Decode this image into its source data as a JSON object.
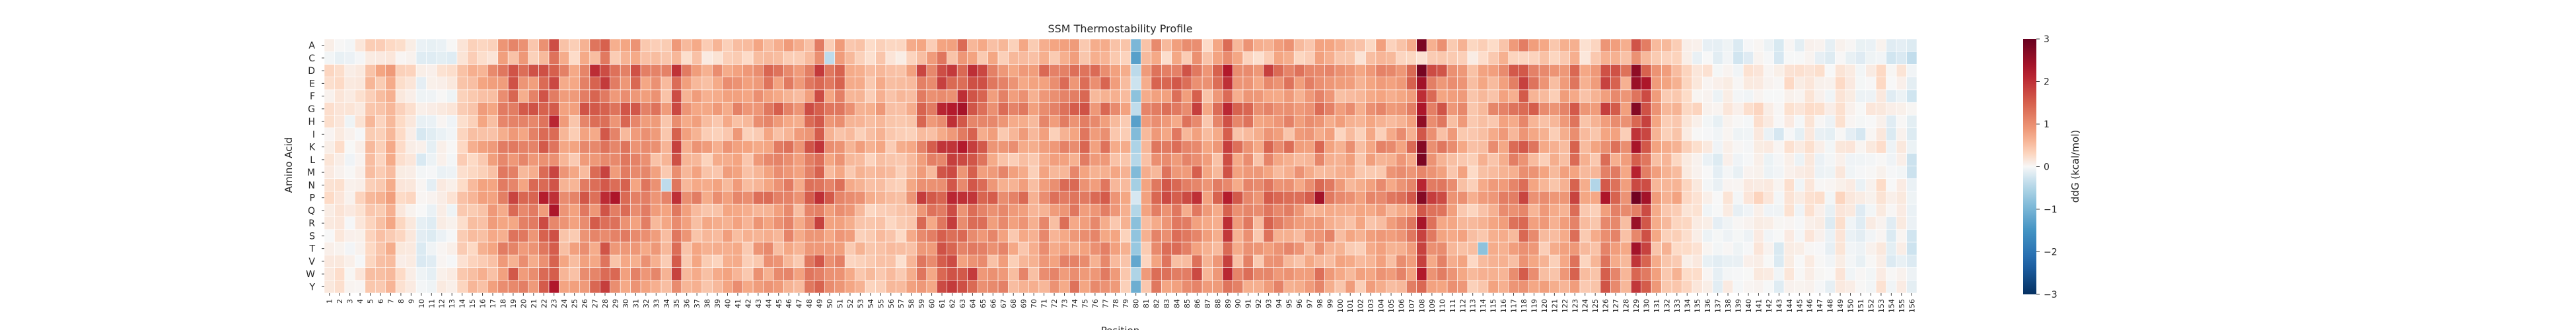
{
  "chart_data": {
    "type": "heatmap",
    "title": "SSM Thermostability Profile",
    "xlabel": "Position",
    "ylabel": "Amino Acid",
    "colorbar_label": "ddG (kcal/mol)",
    "colormap": "RdBu_r",
    "vmin": -3,
    "vmax": 3,
    "colorbar_ticks": [
      3,
      2,
      1,
      0,
      -1,
      -2,
      -3
    ],
    "colorbar_tick_labels": [
      "3",
      "2",
      "1",
      "0",
      "−1",
      "−2",
      "−3"
    ],
    "colors": {
      "negative": "#053061",
      "neutral": "#f7f7f7",
      "positive": "#67001f"
    },
    "y_categories": [
      "A",
      "C",
      "D",
      "E",
      "F",
      "G",
      "H",
      "I",
      "K",
      "L",
      "M",
      "N",
      "P",
      "Q",
      "R",
      "S",
      "T",
      "V",
      "W",
      "Y"
    ],
    "x_range": [
      1,
      156
    ],
    "column_mean_ddg": {
      "1": 0.1,
      "2": 0.1,
      "3": 0.0,
      "4": 0.1,
      "5": 0.4,
      "6": 0.4,
      "7": 0.5,
      "8": 0.2,
      "9": 0.1,
      "10": -0.1,
      "11": -0.1,
      "12": 0.0,
      "13": 0.0,
      "14": 0.3,
      "15": 0.4,
      "16": 0.5,
      "17": 0.6,
      "18": 0.9,
      "19": 1.0,
      "20": 0.9,
      "21": 0.9,
      "22": 1.2,
      "23": 1.6,
      "24": 0.7,
      "25": 0.6,
      "26": 0.9,
      "27": 1.1,
      "28": 1.3,
      "29": 0.9,
      "30": 1.0,
      "31": 0.9,
      "32": 0.8,
      "33": 0.7,
      "34": 0.6,
      "35": 1.2,
      "36": 0.7,
      "37": 0.6,
      "38": 0.5,
      "39": 0.6,
      "40": 0.6,
      "41": 0.7,
      "42": 0.5,
      "43": 0.7,
      "44": 0.8,
      "45": 0.8,
      "46": 0.8,
      "47": 0.7,
      "48": 1.0,
      "49": 1.3,
      "50": 0.8,
      "51": 0.9,
      "52": 0.6,
      "53": 0.5,
      "54": 0.4,
      "55": 0.5,
      "56": 0.4,
      "57": 0.4,
      "58": 0.6,
      "59": 1.0,
      "60": 0.9,
      "61": 1.2,
      "62": 1.4,
      "63": 1.4,
      "64": 1.3,
      "65": 1.1,
      "66": 0.8,
      "67": 0.8,
      "68": 0.6,
      "69": 0.7,
      "70": 0.5,
      "71": 0.8,
      "72": 0.7,
      "73": 0.9,
      "74": 0.9,
      "75": 1.0,
      "76": 0.8,
      "77": 0.9,
      "78": 0.6,
      "79": 0.5,
      "80": -0.7,
      "81": 0.6,
      "82": 0.9,
      "83": 1.0,
      "84": 1.0,
      "85": 0.9,
      "86": 1.1,
      "87": 0.6,
      "88": 0.8,
      "89": 1.4,
      "90": 0.8,
      "91": 0.9,
      "92": 0.7,
      "93": 1.0,
      "94": 0.8,
      "95": 0.8,
      "96": 0.7,
      "97": 0.8,
      "98": 0.9,
      "99": 0.8,
      "100": 0.6,
      "101": 0.6,
      "102": 0.5,
      "103": 0.6,
      "104": 0.7,
      "105": 0.7,
      "106": 0.8,
      "107": 0.9,
      "108": 1.8,
      "109": 1.0,
      "110": 0.9,
      "111": 0.7,
      "112": 0.6,
      "113": 0.4,
      "114": 0.5,
      "115": 0.6,
      "116": 0.7,
      "117": 0.9,
      "118": 1.1,
      "119": 0.8,
      "120": 0.6,
      "121": 0.5,
      "122": 0.6,
      "123": 1.0,
      "124": 0.5,
      "125": 0.5,
      "126": 1.1,
      "127": 0.9,
      "128": 0.7,
      "129": 1.6,
      "130": 1.4,
      "131": 0.6,
      "132": 0.5,
      "133": 0.4,
      "134": 0.2,
      "135": 0.1,
      "136": 0.0,
      "137": -0.1,
      "138": 0.0,
      "139": -0.1,
      "140": 0.0,
      "141": 0.1,
      "142": 0.0,
      "143": -0.1,
      "144": 0.1,
      "145": 0.0,
      "146": 0.1,
      "147": 0.0,
      "148": -0.1,
      "149": 0.1,
      "150": 0.0,
      "151": -0.1,
      "152": 0.0,
      "153": 0.1,
      "154": -0.1,
      "155": 0.0,
      "156": -0.2
    },
    "row_offset_ddg": {
      "A": -0.2,
      "C": -0.4,
      "D": 0.5,
      "E": 0.3,
      "F": 0.1,
      "G": 0.5,
      "H": 0.1,
      "I": -0.1,
      "K": 0.3,
      "L": 0.0,
      "M": 0.0,
      "N": 0.2,
      "P": 0.6,
      "Q": 0.1,
      "R": 0.1,
      "S": 0.0,
      "T": 0.0,
      "V": -0.1,
      "W": 0.2,
      "Y": 0.1
    },
    "notable_cells": [
      {
        "position": 22,
        "aa": "P",
        "ddg": 2.2
      },
      {
        "position": 23,
        "aa": "P",
        "ddg": 2.0
      },
      {
        "position": 23,
        "aa": "H",
        "ddg": 2.1
      },
      {
        "position": 29,
        "aa": "P",
        "ddg": 2.3
      },
      {
        "position": 35,
        "aa": "P",
        "ddg": 2.0
      },
      {
        "position": 49,
        "aa": "P",
        "ddg": 2.0
      },
      {
        "position": 62,
        "aa": "D",
        "ddg": 1.9
      },
      {
        "position": 62,
        "aa": "P",
        "ddg": 2.1
      },
      {
        "position": 63,
        "aa": "P",
        "ddg": 2.0
      },
      {
        "position": 86,
        "aa": "P",
        "ddg": 2.0
      },
      {
        "position": 89,
        "aa": "P",
        "ddg": 2.2
      },
      {
        "position": 98,
        "aa": "P",
        "ddg": 2.4
      },
      {
        "position": 108,
        "aa": "A",
        "ddg": 2.8
      },
      {
        "position": 108,
        "aa": "H",
        "ddg": 2.6
      },
      {
        "position": 108,
        "aa": "K",
        "ddg": 2.7
      },
      {
        "position": 108,
        "aa": "L",
        "ddg": 2.8
      },
      {
        "position": 108,
        "aa": "P",
        "ddg": 2.7
      },
      {
        "position": 126,
        "aa": "P",
        "ddg": 2.3
      },
      {
        "position": 129,
        "aa": "D",
        "ddg": 2.6
      },
      {
        "position": 129,
        "aa": "G",
        "ddg": 2.7
      },
      {
        "position": 129,
        "aa": "P",
        "ddg": 2.9
      },
      {
        "position": 129,
        "aa": "R",
        "ddg": 2.5
      },
      {
        "position": 129,
        "aa": "T",
        "ddg": 2.4
      },
      {
        "position": 130,
        "aa": "P",
        "ddg": 2.4
      },
      {
        "position": 130,
        "aa": "E",
        "ddg": 2.3
      },
      {
        "position": 80,
        "aa": "C",
        "ddg": -1.3
      },
      {
        "position": 80,
        "aa": "H",
        "ddg": -1.3
      },
      {
        "position": 80,
        "aa": "V",
        "ddg": -1.2
      },
      {
        "position": 80,
        "aa": "Y",
        "ddg": -1.1
      },
      {
        "position": 80,
        "aa": "I",
        "ddg": -0.9
      },
      {
        "position": 80,
        "aa": "N",
        "ddg": -0.6
      },
      {
        "position": 80,
        "aa": "F",
        "ddg": -0.8
      },
      {
        "position": 108,
        "aa": "C",
        "ddg": 0.2
      },
      {
        "position": 50,
        "aa": "C",
        "ddg": -0.4
      },
      {
        "position": 114,
        "aa": "T",
        "ddg": -0.8
      },
      {
        "position": 34,
        "aa": "N",
        "ddg": -0.4
      },
      {
        "position": 125,
        "aa": "N",
        "ddg": -0.5
      }
    ]
  }
}
